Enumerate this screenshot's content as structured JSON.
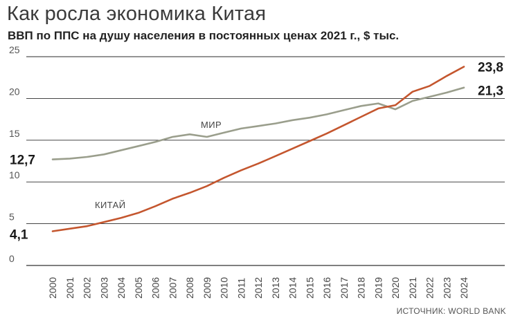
{
  "title": "Как росла экономика Китая",
  "subtitle": "ВВП по ППС на душу населения в постоянных ценах 2021 г., $ тыс.",
  "source": "ИСТОЧНИК: WORLD BANK",
  "chart_data": {
    "type": "line",
    "title": "Как росла экономика Китая",
    "subtitle": "ВВП по ППС на душу населения в постоянных ценах 2021 г., $ тыс.",
    "xlabel": "",
    "ylabel": "",
    "ylim": [
      0,
      25
    ],
    "yticks": [
      "0",
      "5",
      "10",
      "15",
      "20",
      "25"
    ],
    "grid": true,
    "categories": [
      "2000",
      "2001",
      "2002",
      "2003",
      "2004",
      "2005",
      "2006",
      "2007",
      "2008",
      "2009",
      "2010",
      "2011",
      "2012",
      "2013",
      "2014",
      "2015",
      "2016",
      "2017",
      "2018",
      "2019",
      "2020",
      "2021",
      "2022",
      "2023",
      "2024"
    ],
    "series": [
      {
        "name": "МИР",
        "color": "#9a9e8c",
        "values": [
          12.7,
          12.8,
          13.0,
          13.3,
          13.8,
          14.3,
          14.8,
          15.4,
          15.7,
          15.4,
          15.9,
          16.4,
          16.7,
          17.0,
          17.4,
          17.7,
          18.1,
          18.6,
          19.1,
          19.4,
          18.7,
          19.7,
          20.2,
          20.7,
          21.3
        ],
        "start_label": "12,7",
        "end_label": "21,3"
      },
      {
        "name": "КИТАЙ",
        "color": "#c4562e",
        "values": [
          4.1,
          4.4,
          4.7,
          5.2,
          5.7,
          6.3,
          7.1,
          8.0,
          8.7,
          9.5,
          10.5,
          11.4,
          12.2,
          13.1,
          14.0,
          14.9,
          15.8,
          16.8,
          17.8,
          18.8,
          19.2,
          20.8,
          21.5,
          22.7,
          23.8
        ],
        "start_label": "4,1",
        "end_label": "23,8"
      }
    ]
  }
}
